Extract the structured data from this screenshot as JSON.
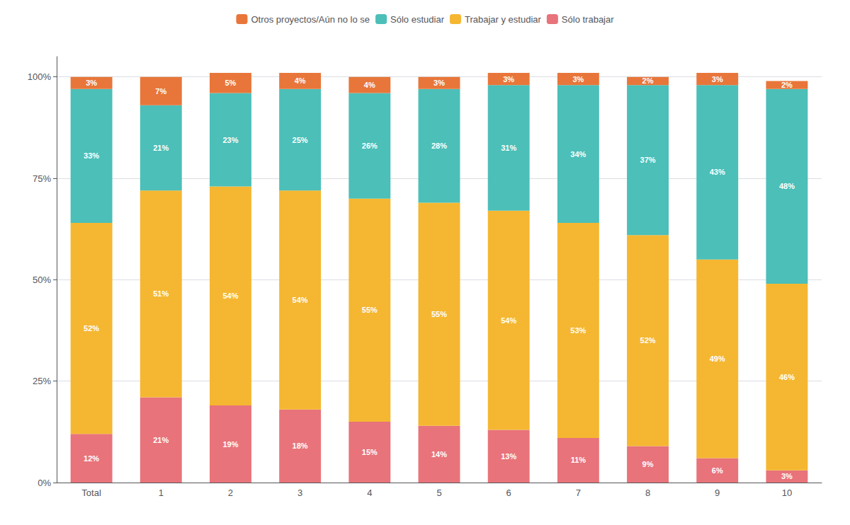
{
  "chart_data": {
    "type": "bar",
    "stacked": true,
    "data_labels": true,
    "grid": true,
    "legend": "top",
    "categories": [
      "Total",
      "1",
      "2",
      "3",
      "4",
      "5",
      "6",
      "7",
      "8",
      "9",
      "10"
    ],
    "series": [
      {
        "name": "Sólo trabajar",
        "color": "#E8737A",
        "values": [
          12,
          21,
          19,
          18,
          15,
          14,
          13,
          11,
          9,
          6,
          3
        ],
        "value_labels": [
          "12%",
          "21%",
          "19%",
          "18%",
          "15%",
          "14%",
          "13%",
          "11%",
          "9%",
          "6%",
          "3%"
        ]
      },
      {
        "name": "Trabajar y estudiar",
        "color": "#F5B731",
        "values": [
          52,
          51,
          54,
          54,
          55,
          55,
          54,
          53,
          52,
          49,
          46
        ],
        "value_labels": [
          "52%",
          "51%",
          "54%",
          "54%",
          "55%",
          "55%",
          "54%",
          "53%",
          "52%",
          "49%",
          "46%"
        ]
      },
      {
        "name": "Sólo estudiar",
        "color": "#4BBFB8",
        "values": [
          33,
          21,
          23,
          25,
          26,
          28,
          31,
          34,
          37,
          43,
          48
        ],
        "value_labels": [
          "33%",
          "21%",
          "23%",
          "25%",
          "26%",
          "28%",
          "31%",
          "34%",
          "37%",
          "43%",
          "48%"
        ]
      },
      {
        "name": "Otros proyectos/Aún no lo se",
        "color": "#E8763A",
        "values": [
          3,
          7,
          5,
          4,
          4,
          3,
          3,
          3,
          2,
          3,
          2
        ],
        "value_labels": [
          "3%",
          "7%",
          "5%",
          "4%",
          "4%",
          "3%",
          "3%",
          "3%",
          "2%",
          "3%",
          "2%"
        ]
      }
    ],
    "ylim": [
      0,
      105
    ],
    "yticks": [
      {
        "value": 0,
        "label": "0%"
      },
      {
        "value": 25,
        "label": "25%"
      },
      {
        "value": 50,
        "label": "50%"
      },
      {
        "value": 75,
        "label": "75%"
      },
      {
        "value": 100,
        "label": "100%"
      }
    ]
  }
}
